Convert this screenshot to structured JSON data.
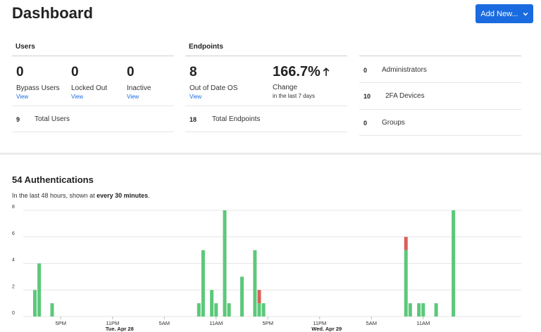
{
  "header": {
    "title": "Dashboard",
    "add_button_label": "Add New..."
  },
  "users": {
    "title": "Users",
    "stats": [
      {
        "value": "0",
        "label": "Bypass Users",
        "link": "View"
      },
      {
        "value": "0",
        "label": "Locked Out",
        "link": "View"
      },
      {
        "value": "0",
        "label": "Inactive",
        "link": "View"
      }
    ],
    "total": {
      "value": "9",
      "label": "Total Users"
    }
  },
  "endpoints": {
    "title": "Endpoints",
    "out_of_date": {
      "value": "8",
      "label": "Out of Date OS",
      "link": "View"
    },
    "change": {
      "value": "166.7%",
      "label": "Change",
      "sub": "in the last 7 days"
    },
    "total": {
      "value": "18",
      "label": "Total Endpoints"
    }
  },
  "summary": [
    {
      "value": "0",
      "label": "Administrators"
    },
    {
      "value": "10",
      "label": "2FA Devices"
    },
    {
      "value": "0",
      "label": "Groups"
    }
  ],
  "authentications": {
    "title": "54 Authentications",
    "subtitle_prefix": "In the last 48 hours, shown at ",
    "subtitle_bold": "every 30 minutes",
    "subtitle_suffix": "."
  },
  "colors": {
    "success": "#5cc87a",
    "failure": "#d9605a",
    "accent": "#1a6be0",
    "grid": "#e6e6e6"
  },
  "chart_data": {
    "type": "bar",
    "stacked": true,
    "ylim": [
      0,
      8
    ],
    "y_ticks": [
      0,
      2,
      4,
      6,
      8
    ],
    "grid": true,
    "x_tick_labels": [
      {
        "label": "5PM",
        "sublabel": "",
        "slot": 6
      },
      {
        "label": "11PM",
        "sublabel": "Tue. Apr 28",
        "slot": 18
      },
      {
        "label": "5AM",
        "sublabel": "",
        "slot": 30
      },
      {
        "label": "11AM",
        "sublabel": "",
        "slot": 42
      },
      {
        "label": "5PM",
        "sublabel": "",
        "slot": 54
      },
      {
        "label": "11PM",
        "sublabel": "Wed. Apr 29",
        "slot": 66
      },
      {
        "label": "5AM",
        "sublabel": "",
        "slot": 78
      },
      {
        "label": "11AM",
        "sublabel": "",
        "slot": 90
      }
    ],
    "slot_count": 99,
    "series": [
      {
        "key": "success",
        "color_key": "success"
      },
      {
        "key": "failure",
        "color_key": "failure"
      }
    ],
    "bars": [
      {
        "slot": 0,
        "success": 2,
        "failure": 0
      },
      {
        "slot": 1,
        "success": 4,
        "failure": 0
      },
      {
        "slot": 4,
        "success": 1,
        "failure": 0
      },
      {
        "slot": 38,
        "success": 1,
        "failure": 0
      },
      {
        "slot": 39,
        "success": 5,
        "failure": 0
      },
      {
        "slot": 41,
        "success": 2,
        "failure": 0
      },
      {
        "slot": 42,
        "success": 1,
        "failure": 0
      },
      {
        "slot": 44,
        "success": 8,
        "failure": 0
      },
      {
        "slot": 45,
        "success": 1,
        "failure": 0
      },
      {
        "slot": 48,
        "success": 3,
        "failure": 0
      },
      {
        "slot": 51,
        "success": 5,
        "failure": 0
      },
      {
        "slot": 52,
        "success": 1,
        "failure": 1
      },
      {
        "slot": 53,
        "success": 1,
        "failure": 0
      },
      {
        "slot": 86,
        "success": 5,
        "failure": 1
      },
      {
        "slot": 87,
        "success": 1,
        "failure": 0
      },
      {
        "slot": 89,
        "success": 1,
        "failure": 0
      },
      {
        "slot": 90,
        "success": 1,
        "failure": 0
      },
      {
        "slot": 93,
        "success": 1,
        "failure": 0
      },
      {
        "slot": 97,
        "success": 8,
        "failure": 0
      }
    ]
  }
}
